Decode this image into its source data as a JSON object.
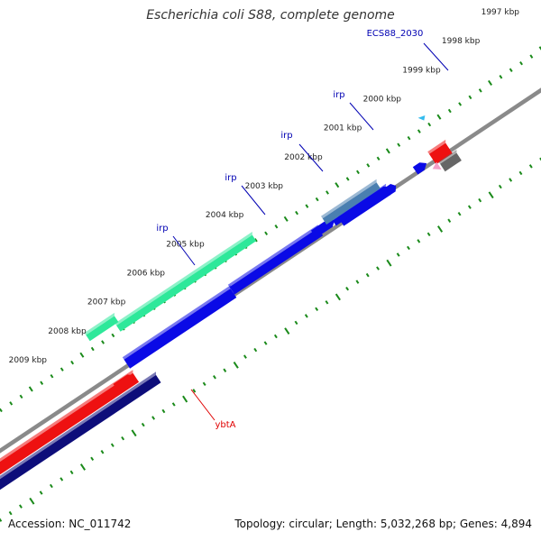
{
  "title": "Escherichia coli S88, complete genome",
  "footer": {
    "accession": "Accession: NC_011742",
    "stats": "Topology: circular; Length: 5,032,268 bp; Genes: 4,894"
  },
  "kbp_labels": [
    "1997 kbp",
    "1998 kbp",
    "1999 kbp",
    "2000 kbp",
    "2001 kbp",
    "2002 kbp",
    "2003 kbp",
    "2004 kbp",
    "2005 kbp",
    "2006 kbp",
    "2007 kbp",
    "2008 kbp",
    "2009 kbp"
  ],
  "gene_labels": [
    {
      "text": "ECS88_2030",
      "color": "#0000b3"
    },
    {
      "text": "irp",
      "color": "#0000b3"
    },
    {
      "text": "irp",
      "color": "#0000b3"
    },
    {
      "text": "irp",
      "color": "#0000b3"
    },
    {
      "text": "irp",
      "color": "#0000b3"
    },
    {
      "text": "ybtA",
      "color": "#e00000"
    }
  ],
  "colors": {
    "backbone": "#8a8a8a",
    "tick": "#1a8a1a",
    "irp_blue": "#0a0ae6",
    "irp_green": "#2ee89a",
    "irp_steel": "#4a7fb0",
    "red": "#ee1111",
    "navy": "#0d0d7a",
    "gray": "#666666",
    "pink": "#f4a0c8",
    "cyan": "#33bbee"
  }
}
